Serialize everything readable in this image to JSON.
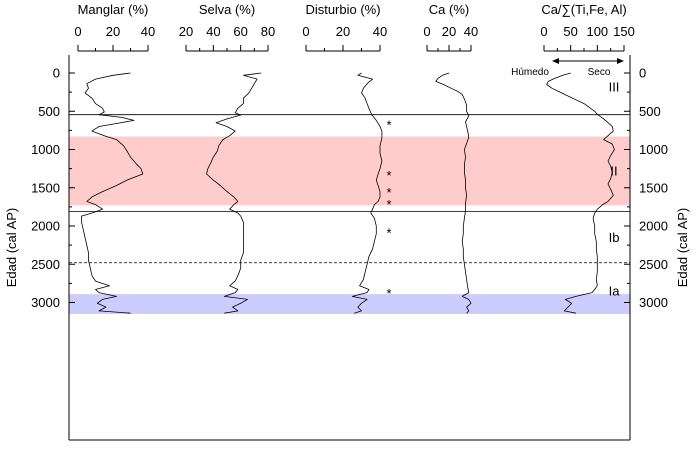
{
  "chart_data": {
    "type": "line",
    "y_axis": {
      "label": "Edad (cal AP)",
      "ticks": [
        0,
        500,
        1000,
        1500,
        2000,
        2500,
        3000
      ],
      "range": [
        -150,
        3150
      ],
      "reversed": true
    },
    "panels": [
      {
        "title": "Manglar (%)",
        "ticks": [
          0,
          20,
          40
        ],
        "range": [
          -5,
          45
        ],
        "series": [
          [
            0,
            30
          ],
          [
            30,
            20
          ],
          [
            80,
            10
          ],
          [
            140,
            5
          ],
          [
            200,
            6
          ],
          [
            260,
            4
          ],
          [
            330,
            8
          ],
          [
            400,
            10
          ],
          [
            460,
            14
          ],
          [
            510,
            15
          ],
          [
            545,
            12
          ],
          [
            580,
            25
          ],
          [
            620,
            32
          ],
          [
            660,
            22
          ],
          [
            700,
            12
          ],
          [
            760,
            8
          ],
          [
            820,
            15
          ],
          [
            870,
            22
          ],
          [
            950,
            26
          ],
          [
            1020,
            28
          ],
          [
            1100,
            30
          ],
          [
            1180,
            33
          ],
          [
            1250,
            36
          ],
          [
            1320,
            37
          ],
          [
            1400,
            28
          ],
          [
            1470,
            22
          ],
          [
            1550,
            14
          ],
          [
            1620,
            8
          ],
          [
            1680,
            5
          ],
          [
            1720,
            10
          ],
          [
            1780,
            14
          ],
          [
            1830,
            8
          ],
          [
            1870,
            2
          ],
          [
            1950,
            2
          ],
          [
            2050,
            3
          ],
          [
            2150,
            4
          ],
          [
            2250,
            5
          ],
          [
            2350,
            6
          ],
          [
            2450,
            6
          ],
          [
            2550,
            7
          ],
          [
            2650,
            8
          ],
          [
            2720,
            10
          ],
          [
            2780,
            18
          ],
          [
            2830,
            10
          ],
          [
            2870,
            12
          ],
          [
            2920,
            22
          ],
          [
            2960,
            14
          ],
          [
            3010,
            11
          ],
          [
            3060,
            16
          ],
          [
            3110,
            12
          ],
          [
            3140,
            30
          ]
        ]
      },
      {
        "title": "Selva (%)",
        "ticks": [
          20,
          40,
          60,
          80
        ],
        "range": [
          18,
          85
        ],
        "series": [
          [
            0,
            75
          ],
          [
            30,
            62
          ],
          [
            80,
            72
          ],
          [
            140,
            70
          ],
          [
            200,
            68
          ],
          [
            260,
            66
          ],
          [
            330,
            62
          ],
          [
            400,
            62
          ],
          [
            460,
            58
          ],
          [
            520,
            56
          ],
          [
            550,
            60
          ],
          [
            600,
            50
          ],
          [
            650,
            42
          ],
          [
            700,
            50
          ],
          [
            760,
            56
          ],
          [
            820,
            52
          ],
          [
            870,
            47
          ],
          [
            950,
            44
          ],
          [
            1020,
            43
          ],
          [
            1100,
            40
          ],
          [
            1180,
            38
          ],
          [
            1250,
            36
          ],
          [
            1320,
            35
          ],
          [
            1400,
            40
          ],
          [
            1470,
            45
          ],
          [
            1550,
            50
          ],
          [
            1620,
            55
          ],
          [
            1680,
            58
          ],
          [
            1720,
            55
          ],
          [
            1780,
            52
          ],
          [
            1830,
            58
          ],
          [
            1870,
            60
          ],
          [
            1950,
            62
          ],
          [
            2050,
            62
          ],
          [
            2150,
            62
          ],
          [
            2250,
            62
          ],
          [
            2350,
            62
          ],
          [
            2450,
            60
          ],
          [
            2550,
            60
          ],
          [
            2650,
            58
          ],
          [
            2720,
            56
          ],
          [
            2780,
            52
          ],
          [
            2830,
            58
          ],
          [
            2870,
            56
          ],
          [
            2920,
            48
          ],
          [
            2960,
            65
          ],
          [
            3010,
            60
          ],
          [
            3060,
            54
          ],
          [
            3110,
            58
          ],
          [
            3140,
            48
          ]
        ]
      },
      {
        "title": "Disturbio (%)",
        "ticks": [
          0,
          20,
          40
        ],
        "range": [
          -2,
          47
        ],
        "series": [
          [
            0,
            30
          ],
          [
            30,
            28
          ],
          [
            80,
            36
          ],
          [
            140,
            33
          ],
          [
            200,
            31
          ],
          [
            260,
            30
          ],
          [
            330,
            32
          ],
          [
            400,
            33
          ],
          [
            460,
            34
          ],
          [
            520,
            35
          ],
          [
            560,
            36
          ],
          [
            620,
            38
          ],
          [
            700,
            40
          ],
          [
            760,
            41
          ],
          [
            850,
            41
          ],
          [
            950,
            40
          ],
          [
            1050,
            40
          ],
          [
            1150,
            41
          ],
          [
            1250,
            40
          ],
          [
            1320,
            39
          ],
          [
            1400,
            38
          ],
          [
            1470,
            39
          ],
          [
            1550,
            40
          ],
          [
            1620,
            40
          ],
          [
            1680,
            39
          ],
          [
            1720,
            37
          ],
          [
            1780,
            36
          ],
          [
            1830,
            35
          ],
          [
            1900,
            37
          ],
          [
            2000,
            38
          ],
          [
            2100,
            38
          ],
          [
            2200,
            37
          ],
          [
            2300,
            36
          ],
          [
            2400,
            34
          ],
          [
            2500,
            33
          ],
          [
            2600,
            32
          ],
          [
            2700,
            31
          ],
          [
            2780,
            29
          ],
          [
            2830,
            34
          ],
          [
            2870,
            33
          ],
          [
            2920,
            25
          ],
          [
            2960,
            33
          ],
          [
            3010,
            30
          ],
          [
            3060,
            28
          ],
          [
            3110,
            30
          ],
          [
            3140,
            26
          ]
        ]
      },
      {
        "title": "Ca (%)",
        "ticks": [
          0,
          20,
          40
        ],
        "range": [
          -3,
          45
        ],
        "series": [
          [
            0,
            20
          ],
          [
            30,
            14
          ],
          [
            70,
            10
          ],
          [
            110,
            8
          ],
          [
            150,
            15
          ],
          [
            200,
            22
          ],
          [
            240,
            28
          ],
          [
            280,
            32
          ],
          [
            340,
            34
          ],
          [
            420,
            36
          ],
          [
            500,
            36
          ],
          [
            560,
            38
          ],
          [
            640,
            35
          ],
          [
            700,
            36
          ],
          [
            760,
            37
          ],
          [
            840,
            38
          ],
          [
            920,
            36
          ],
          [
            1000,
            34
          ],
          [
            1100,
            35
          ],
          [
            1200,
            34
          ],
          [
            1300,
            34
          ],
          [
            1400,
            35
          ],
          [
            1500,
            35
          ],
          [
            1600,
            36
          ],
          [
            1700,
            35
          ],
          [
            1800,
            35
          ],
          [
            1900,
            34
          ],
          [
            2000,
            33
          ],
          [
            2100,
            33
          ],
          [
            2200,
            32
          ],
          [
            2300,
            33
          ],
          [
            2400,
            33
          ],
          [
            2500,
            34
          ],
          [
            2600,
            35
          ],
          [
            2700,
            36
          ],
          [
            2800,
            37
          ],
          [
            2870,
            38
          ],
          [
            2920,
            32
          ],
          [
            2960,
            38
          ],
          [
            3010,
            40
          ],
          [
            3060,
            36
          ],
          [
            3110,
            38
          ],
          [
            3140,
            36
          ]
        ]
      },
      {
        "title": "Ca/∑(Ti,Fe, Al)",
        "ticks": [
          0,
          50,
          100,
          150
        ],
        "range": [
          -10,
          155
        ],
        "series": [
          [
            0,
            50
          ],
          [
            30,
            35
          ],
          [
            70,
            20
          ],
          [
            110,
            8
          ],
          [
            150,
            5
          ],
          [
            200,
            15
          ],
          [
            250,
            30
          ],
          [
            300,
            45
          ],
          [
            350,
            60
          ],
          [
            400,
            75
          ],
          [
            450,
            85
          ],
          [
            500,
            95
          ],
          [
            540,
            100
          ],
          [
            600,
            112
          ],
          [
            650,
            120
          ],
          [
            700,
            128
          ],
          [
            760,
            130
          ],
          [
            820,
            120
          ],
          [
            870,
            112
          ],
          [
            930,
            128
          ],
          [
            1000,
            132
          ],
          [
            1080,
            125
          ],
          [
            1150,
            120
          ],
          [
            1220,
            125
          ],
          [
            1300,
            128
          ],
          [
            1380,
            125
          ],
          [
            1450,
            120
          ],
          [
            1520,
            125
          ],
          [
            1600,
            130
          ],
          [
            1680,
            120
          ],
          [
            1720,
            110
          ],
          [
            1780,
            100
          ],
          [
            1830,
            95
          ],
          [
            1900,
            92
          ],
          [
            2000,
            95
          ],
          [
            2100,
            95
          ],
          [
            2200,
            98
          ],
          [
            2300,
            98
          ],
          [
            2400,
            100
          ],
          [
            2500,
            100
          ],
          [
            2600,
            100
          ],
          [
            2700,
            98
          ],
          [
            2780,
            100
          ],
          [
            2830,
            95
          ],
          [
            2870,
            90
          ],
          [
            2920,
            60
          ],
          [
            2960,
            40
          ],
          [
            3010,
            52
          ],
          [
            3060,
            45
          ],
          [
            3110,
            38
          ],
          [
            3140,
            60
          ]
        ]
      }
    ],
    "zones": [
      {
        "label": "III",
        "at": 180
      },
      {
        "label": "II",
        "at": 1280
      },
      {
        "label": "Ib",
        "at": 2150
      },
      {
        "label": "Ia",
        "at": 2850
      }
    ],
    "bands": [
      {
        "from": 830,
        "to": 1730,
        "color": "#ffcccc"
      },
      {
        "from": 2890,
        "to": 3150,
        "color": "#ccccff"
      }
    ],
    "solid_lines": [
      545,
      1810
    ],
    "dashed_lines": [
      2480
    ],
    "asterisks": [
      660,
      1320,
      1540,
      1700,
      2070,
      2860
    ],
    "annotation": {
      "left": "Húmedo",
      "right": "Seco"
    }
  }
}
